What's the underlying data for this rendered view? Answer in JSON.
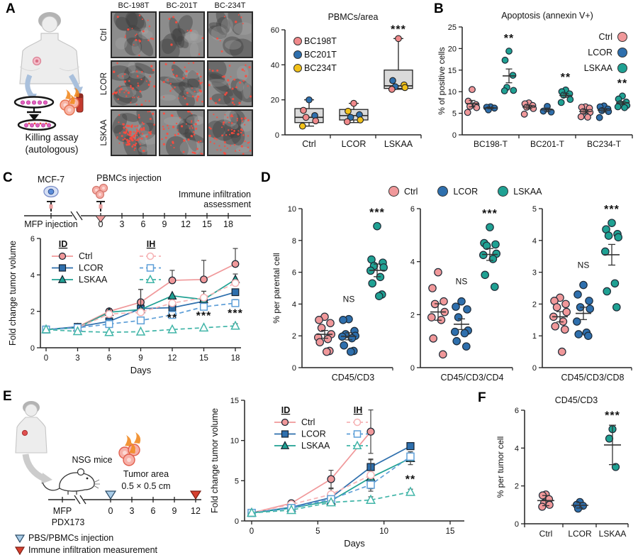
{
  "colors": {
    "ctrl": "#F0989A",
    "lcor": "#2E6FAD",
    "lskaa": "#1FA193",
    "ctrl_light": "#F6B3B5",
    "lcor_light": "#5E9FD8",
    "lskaa_light": "#41B5A8",
    "bc198t": "#F0898B",
    "bc201t": "#2E6FAD",
    "bc234t": "#F2C118",
    "red_marker": "#D7402F",
    "blue_marker": "#A9CCE8",
    "box_fill": "#DADADA"
  },
  "panels": {
    "A": {
      "label": "A",
      "caption_1": "Killing assay",
      "caption_2": "(autologous)",
      "microscopy": {
        "cols": [
          "BC-198T",
          "BC-201T",
          "BC-234T"
        ],
        "rows": [
          "Ctrl",
          "LCOR",
          "LSKAA"
        ]
      }
    },
    "B": {
      "label": "B"
    },
    "C": {
      "label": "C",
      "schematic": {
        "cell": "MCF-7",
        "injection": "PBMCs injection",
        "mfp": "MFP injection",
        "assessment_1": "Immune infiltration",
        "assessment_2": "assessment",
        "days": [
          "0",
          "3",
          "6",
          "9",
          "12",
          "15",
          "18"
        ]
      }
    },
    "D": {
      "label": "D",
      "legend": [
        "Ctrl",
        "LCOR",
        "LSKAA"
      ]
    },
    "E": {
      "label": "E",
      "schematic": {
        "mice": "NSG mice",
        "tumor_1": "Tumor area",
        "tumor_2": "0.5 × 0.5 cm",
        "mfp": "MFP",
        "pdx": "PDX173",
        "days": [
          "0",
          "3",
          "6",
          "9",
          "12"
        ],
        "legend": [
          {
            "label": "PBS/PBMCs injection"
          },
          {
            "label": "Immune infiltration measurement"
          }
        ]
      }
    },
    "F": {
      "label": "F"
    }
  },
  "chart_data": {
    "pbmc_box": {
      "type": "box",
      "title": "PBMCs/area",
      "categories": [
        "Ctrl",
        "LCOR",
        "LSKAA"
      ],
      "ylim": [
        0,
        60
      ],
      "yticks": [
        0,
        20,
        40,
        60
      ],
      "legend": [
        "BC198T",
        "BC201T",
        "BC234T"
      ],
      "boxes": [
        {
          "min": 5,
          "q1": 7,
          "median": 10,
          "q3": 15,
          "max": 20
        },
        {
          "min": 7,
          "q1": 8.5,
          "median": 11,
          "q3": 14.5,
          "max": 18
        },
        {
          "min": 26,
          "q1": 26.5,
          "median": 28,
          "q3": 37,
          "max": 55
        }
      ],
      "points": [
        [
          [
            "BC201T",
            20
          ],
          [
            "BC198T",
            14
          ],
          [
            "BC201T",
            11
          ],
          [
            "BC198T",
            10
          ],
          [
            "BC198T",
            8
          ],
          [
            "BC234T",
            5
          ]
        ],
        [
          [
            "BC198T",
            18
          ],
          [
            "BC234T",
            13.5
          ],
          [
            "BC201T",
            11.5
          ],
          [
            "BC201T",
            10
          ],
          [
            "BC234T",
            8.5
          ],
          [
            "BC198T",
            7.5
          ]
        ],
        [
          [
            "BC198T",
            55
          ],
          [
            "BC201T",
            31
          ],
          [
            "BC234T",
            28.5
          ],
          [
            "BC201T",
            27.5
          ],
          [
            "BC234T",
            27
          ],
          [
            "BC198T",
            26
          ]
        ]
      ],
      "sig": [
        {
          "cat": 2,
          "label": "***"
        }
      ]
    },
    "apoptosis": {
      "type": "grouped_scatter",
      "title": "Apoptosis (annexin V+)",
      "ylabel": "% of positive cells",
      "ylim": [
        0,
        25
      ],
      "yticks": [
        0,
        5,
        10,
        15,
        20,
        25
      ],
      "groups": [
        "BC198-T",
        "BC201-T",
        "BC234-T"
      ],
      "series": [
        "Ctrl",
        "LCOR",
        "LSKAA"
      ],
      "values": [
        [
          [
            10.5,
            7.8,
            7.0,
            6.6,
            6.3,
            5.2
          ],
          [
            6.5,
            6.4,
            6.2,
            5.8
          ],
          [
            19.4,
            17.3,
            13.8,
            11.0,
            10.3,
            10.2
          ]
        ],
        [
          [
            7.4,
            7.2,
            6.8,
            6.4,
            6.1,
            4.8
          ],
          [
            6.6,
            5.5,
            5.3
          ],
          [
            10.4,
            10.0,
            9.5,
            9.2,
            8.2,
            7.5
          ]
        ],
        [
          [
            6.5,
            6.4,
            6.2,
            5.4,
            5.2,
            4.2,
            4.1
          ],
          [
            6.7,
            6.5,
            6.0,
            5.6,
            5.4,
            4.0
          ],
          [
            9.0,
            8.3,
            7.6,
            7.2,
            6.8,
            6.5,
            6.3
          ]
        ]
      ],
      "sig": [
        {
          "group": 0,
          "series": 2,
          "label": "**"
        },
        {
          "group": 1,
          "series": 2,
          "label": "**"
        },
        {
          "group": 2,
          "series": 2,
          "label": "**"
        }
      ]
    },
    "mcf7_growth": {
      "type": "line",
      "ylabel": "Fold change tumor volume",
      "xlabel": "Days",
      "ylim": [
        0,
        6
      ],
      "yticks": [
        0,
        2,
        4,
        6
      ],
      "x": [
        0,
        3,
        6,
        9,
        12,
        15,
        18
      ],
      "legend": {
        "col1": "ID",
        "col2": "IH",
        "rows": [
          "Ctrl",
          "LCOR",
          "LSKAA"
        ]
      },
      "series": [
        {
          "name": "Ctrl",
          "group": "ID",
          "marker": "circle",
          "style": "solid",
          "values": [
            1,
            1.15,
            2.0,
            2.5,
            3.7,
            3.75,
            4.6
          ],
          "err": [
            0,
            0,
            0.15,
            0.7,
            0.55,
            1.05,
            0.85
          ]
        },
        {
          "name": "LCOR",
          "group": "ID",
          "marker": "square",
          "style": "solid",
          "values": [
            1,
            1.15,
            1.45,
            2.15,
            2.2,
            2.55,
            3.05
          ],
          "err": [
            0,
            0,
            0,
            0,
            0,
            0.55,
            0.15
          ]
        },
        {
          "name": "LSKAA",
          "group": "ID",
          "marker": "triangle",
          "style": "solid",
          "values": [
            1,
            1.1,
            1.95,
            2.1,
            2.85,
            2.65,
            3.75
          ],
          "err": [
            0,
            0,
            0,
            1.1,
            0,
            0.45,
            0.3
          ]
        },
        {
          "name": "Ctrl",
          "group": "IH",
          "marker": "circle",
          "style": "dashed",
          "values": [
            1,
            1.1,
            1.85,
            1.95,
            2.45,
            2.75,
            3.55
          ],
          "err": [
            0,
            0,
            0,
            0,
            0,
            0,
            0
          ]
        },
        {
          "name": "LCOR",
          "group": "IH",
          "marker": "square",
          "style": "dashed",
          "values": [
            1,
            1.1,
            1.3,
            1.5,
            1.8,
            2.25,
            2.45
          ],
          "err": [
            0,
            0,
            0,
            0,
            0,
            0,
            0.2
          ]
        },
        {
          "name": "LSKAA",
          "group": "IH",
          "marker": "triangle",
          "style": "dashed",
          "values": [
            1,
            0.9,
            0.85,
            0.88,
            1.0,
            1.1,
            1.2
          ],
          "err": [
            0,
            0,
            0,
            0,
            0,
            0,
            0.12
          ]
        }
      ],
      "annotations": [
        {
          "x": 12,
          "y": 1.45,
          "label": "**"
        },
        {
          "x": 15,
          "y": 1.55,
          "label": "***"
        },
        {
          "x": 18,
          "y": 1.7,
          "label": "***"
        }
      ]
    },
    "mcf7_infiltration": [
      {
        "type": "scatter",
        "xlabel": "CD45/CD3",
        "ylabel": "% per parental cell",
        "ylim": [
          0,
          10
        ],
        "yticks": [
          0,
          2,
          4,
          6,
          8,
          10
        ],
        "series": [
          {
            "name": "Ctrl",
            "values": [
              3.2,
              3.0,
              2.8,
              2.5,
              2.1,
              1.9,
              1.8,
              1.6,
              1.05,
              1.0
            ]
          },
          {
            "name": "LCOR",
            "values": [
              3.05,
              3.0,
              2.3,
              2.1,
              2.0,
              1.95,
              1.85,
              1.4,
              1.05,
              1.0
            ],
            "sig": "NS"
          },
          {
            "name": "LSKAA",
            "values": [
              8.9,
              6.8,
              6.6,
              6.4,
              6.3,
              6.1,
              5.7,
              5.3,
              4.6,
              4.5
            ],
            "sig": "***"
          }
        ]
      },
      {
        "type": "scatter",
        "xlabel": "CD45/CD3/CD4",
        "ylim": [
          0,
          6
        ],
        "yticks": [
          0,
          2,
          4,
          6
        ],
        "series": [
          {
            "name": "Ctrl",
            "values": [
              3.6,
              3.0,
              2.5,
              2.4,
              2.1,
              1.9,
              1.8,
              1.1,
              0.5
            ]
          },
          {
            "name": "LCOR",
            "values": [
              2.5,
              2.3,
              2.2,
              1.9,
              1.4,
              1.35,
              1.3,
              1.0,
              0.8
            ],
            "sig": "NS"
          },
          {
            "name": "LSKAA",
            "values": [
              5.3,
              4.7,
              4.65,
              4.6,
              4.3,
              4.25,
              4.1,
              3.5,
              3.05
            ],
            "sig": "***"
          }
        ]
      },
      {
        "type": "scatter",
        "xlabel": "CD45/CD3/CD8",
        "ylim": [
          0,
          5
        ],
        "yticks": [
          0,
          1,
          2,
          3,
          4,
          5
        ],
        "series": [
          {
            "name": "Ctrl",
            "values": [
              2.2,
              2.1,
              2.0,
              1.9,
              1.75,
              1.6,
              1.45,
              1.3,
              1.2,
              0.5
            ]
          },
          {
            "name": "LCOR",
            "values": [
              2.6,
              2.3,
              2.1,
              1.9,
              1.85,
              1.45,
              1.1,
              1.05,
              1.0
            ],
            "sig": "NS"
          },
          {
            "name": "LSKAA",
            "values": [
              4.55,
              4.35,
              4.2,
              4.15,
              4.1,
              3.65,
              2.65,
              2.4,
              1.9
            ],
            "sig": "***"
          }
        ]
      }
    ],
    "pdx_growth": {
      "type": "line",
      "ylabel": "Fold change tumor volume",
      "xlabel": "Days",
      "ylim": [
        0,
        15
      ],
      "yticks": [
        0,
        5,
        10,
        15
      ],
      "x": [
        0,
        3,
        6,
        9,
        12
      ],
      "xlim": [
        0,
        15
      ],
      "xticks": [
        0,
        5,
        10,
        15
      ],
      "legend": {
        "col1": "ID",
        "col2": "IH",
        "rows": [
          "Ctrl",
          "LCOR",
          "LSKAA"
        ]
      },
      "series": [
        {
          "name": "Ctrl",
          "group": "ID",
          "marker": "circle",
          "style": "solid",
          "values": [
            1,
            2.2,
            5.2,
            11.1,
            null
          ],
          "err": [
            0,
            0,
            1.1,
            2.7,
            0
          ]
        },
        {
          "name": "LCOR",
          "group": "ID",
          "marker": "square",
          "style": "solid",
          "values": [
            1,
            1.7,
            2.9,
            6.7,
            9.3
          ],
          "err": [
            0,
            0,
            0.4,
            0.9,
            0.4
          ]
        },
        {
          "name": "LSKAA",
          "group": "ID",
          "marker": "triangle",
          "style": "solid",
          "values": [
            1,
            1.6,
            2.5,
            5.4,
            7.8
          ],
          "err": [
            0,
            0,
            0.3,
            0.5,
            0.8
          ]
        },
        {
          "name": "Ctrl",
          "group": "IH",
          "marker": "circle",
          "style": "dashed",
          "values": [
            1,
            2.05,
            3.3,
            5.7,
            null
          ],
          "err": [
            0,
            0,
            0.7,
            2.0,
            0
          ]
        },
        {
          "name": "LCOR",
          "group": "IH",
          "marker": "square",
          "style": "dashed",
          "values": [
            1,
            1.6,
            2.7,
            4.5,
            8.0
          ],
          "err": [
            0,
            0,
            0.3,
            0.5,
            0.6
          ]
        },
        {
          "name": "LSKAA",
          "group": "IH",
          "marker": "triangle",
          "style": "dashed",
          "values": [
            1,
            1.35,
            2.3,
            2.6,
            3.6
          ],
          "err": [
            0,
            0,
            0.2,
            0.4,
            0.35
          ]
        }
      ],
      "annotations": [
        {
          "x": 12,
          "y": 4.7,
          "label": "**"
        }
      ]
    },
    "pdx_cd45": {
      "type": "scatter",
      "title": "CD45/CD3",
      "ylabel": "% per tumor cell",
      "ylim": [
        0,
        6
      ],
      "yticks": [
        0,
        2,
        4,
        6
      ],
      "categories": [
        "Ctrl",
        "LCOR",
        "LSKAA"
      ],
      "errormode": "sd",
      "series": [
        {
          "name": "Ctrl",
          "values": [
            1.55,
            1.5,
            1.3,
            1.1,
            1.0,
            0.9
          ]
        },
        {
          "name": "LCOR",
          "values": [
            1.15,
            1.0,
            0.95,
            0.8
          ]
        },
        {
          "name": "LSKAA",
          "values": [
            5.0,
            4.5,
            3.0
          ],
          "sig": "***"
        }
      ]
    }
  }
}
